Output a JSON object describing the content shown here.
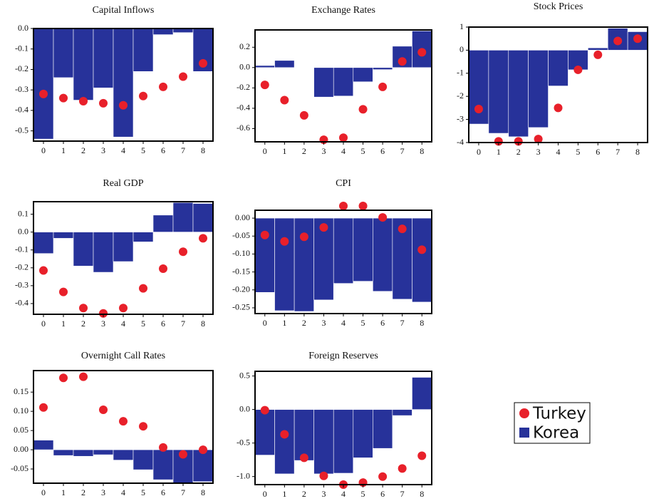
{
  "chart_data": [
    {
      "type": "combo",
      "title": "Capital Inflows",
      "categories": [
        "0",
        "1",
        "2",
        "3",
        "4",
        "5",
        "6",
        "7",
        "8"
      ],
      "ylim": [
        -0.55,
        0
      ],
      "yticks": [
        {
          "value": 0,
          "label": "0.0"
        },
        -0.1,
        -0.2,
        -0.3,
        -0.4,
        -0.5
      ],
      "series": [
        {
          "type": "bar",
          "color": "#27329a",
          "values": [
            -0.54,
            -0.24,
            -0.35,
            -0.29,
            -0.53,
            -0.21,
            -0.03,
            -0.02,
            -0.21
          ]
        },
        {
          "type": "scatter",
          "color": "#e8202a",
          "values": [
            -0.32,
            -0.34,
            -0.355,
            -0.365,
            -0.375,
            -0.33,
            -0.285,
            -0.235,
            -0.17
          ]
        }
      ]
    },
    {
      "type": "combo",
      "title": "Exchange Rates",
      "categories": [
        "0",
        "1",
        "2",
        "3",
        "4",
        "5",
        "6",
        "7",
        "8"
      ],
      "ylim": [
        -0.73,
        0.37
      ],
      "yticks": [
        0.2,
        {
          "value": 0,
          "label": "0.0"
        },
        -0.2,
        -0.4,
        -0.6
      ],
      "series": [
        {
          "type": "bar",
          "color": "#27329a",
          "values": [
            0.02,
            0.07,
            0.0,
            -0.29,
            -0.28,
            -0.14,
            -0.02,
            0.21,
            0.36
          ]
        },
        {
          "type": "scatter",
          "color": "#e8202a",
          "values": [
            -0.17,
            -0.32,
            -0.47,
            -0.71,
            -0.69,
            -0.41,
            -0.19,
            0.06,
            0.15
          ]
        }
      ]
    },
    {
      "type": "combo",
      "title": "Stock Prices",
      "categories": [
        "0",
        "1",
        "2",
        "3",
        "4",
        "5",
        "6",
        "7",
        "8"
      ],
      "ylim": [
        -4,
        1
      ],
      "yticks": [
        1,
        0,
        -1,
        -2,
        -3,
        -4
      ],
      "series": [
        {
          "type": "bar",
          "color": "#27329a",
          "values": [
            -3.2,
            -3.6,
            -3.75,
            -3.35,
            -1.55,
            -0.85,
            0.1,
            0.95,
            0.8
          ]
        },
        {
          "type": "scatter",
          "color": "#e8202a",
          "values": [
            -2.55,
            -3.95,
            -3.95,
            -3.85,
            -2.5,
            -0.85,
            -0.2,
            0.4,
            0.5
          ]
        }
      ]
    },
    {
      "type": "combo",
      "title": "Real GDP",
      "categories": [
        "0",
        "1",
        "2",
        "3",
        "4",
        "5",
        "6",
        "7",
        "8"
      ],
      "ylim": [
        -0.46,
        0.17
      ],
      "yticks": [
        0.1,
        {
          "value": 0,
          "label": "0.0"
        },
        -0.1,
        -0.2,
        -0.3,
        -0.4
      ],
      "series": [
        {
          "type": "bar",
          "color": "#27329a",
          "values": [
            -0.12,
            -0.035,
            -0.19,
            -0.225,
            -0.165,
            -0.055,
            0.095,
            0.165,
            0.16
          ]
        },
        {
          "type": "scatter",
          "color": "#e8202a",
          "values": [
            -0.215,
            -0.335,
            -0.425,
            -0.455,
            -0.425,
            -0.315,
            -0.205,
            -0.11,
            -0.035
          ]
        }
      ]
    },
    {
      "type": "combo",
      "title": "CPI",
      "categories": [
        "0",
        "1",
        "2",
        "3",
        "4",
        "5",
        "6",
        "7",
        "8"
      ],
      "ylim": [
        -0.266,
        0.022
      ],
      "yticks": [
        {
          "value": 0,
          "label": "0.00"
        },
        {
          "value": -0.05,
          "label": "-0.05"
        },
        {
          "value": -0.1,
          "label": "-0.10"
        },
        {
          "value": -0.15,
          "label": "-0.15"
        },
        {
          "value": -0.2,
          "label": "-0.20"
        },
        {
          "value": -0.25,
          "label": "-0.25"
        }
      ],
      "series": [
        {
          "type": "bar",
          "color": "#27329a",
          "values": [
            -0.207,
            -0.258,
            -0.26,
            -0.228,
            -0.182,
            -0.176,
            -0.204,
            -0.226,
            -0.234
          ]
        },
        {
          "type": "scatter",
          "color": "#e8202a",
          "values": [
            -0.047,
            -0.065,
            -0.052,
            -0.026,
            0.034,
            0.034,
            0.002,
            -0.03,
            -0.088
          ]
        }
      ]
    },
    {
      "type": "combo",
      "title": "Overnight Call Rates",
      "categories": [
        "0",
        "1",
        "2",
        "3",
        "4",
        "5",
        "6",
        "7",
        "8"
      ],
      "ylim": [
        -0.087,
        0.206
      ],
      "yticks": [
        0.15,
        {
          "value": 0.1,
          "label": "0.10"
        },
        0.05,
        {
          "value": 0,
          "label": "0.00"
        },
        -0.05
      ],
      "series": [
        {
          "type": "bar",
          "color": "#27329a",
          "values": [
            0.025,
            -0.015,
            -0.017,
            -0.013,
            -0.027,
            -0.052,
            -0.078,
            -0.088,
            -0.083
          ]
        },
        {
          "type": "scatter",
          "color": "#e8202a",
          "values": [
            0.11,
            0.187,
            0.19,
            0.104,
            0.074,
            0.061,
            0.006,
            -0.012,
            0.0
          ]
        }
      ]
    },
    {
      "type": "combo",
      "title": "Foreign Reserves",
      "categories": [
        "0",
        "1",
        "2",
        "3",
        "4",
        "5",
        "6",
        "7",
        "8"
      ],
      "ylim": [
        -1.12,
        0.57
      ],
      "yticks": [
        0.5,
        {
          "value": 0,
          "label": "0.0"
        },
        -0.5,
        {
          "value": -1,
          "label": "-1.0"
        }
      ],
      "series": [
        {
          "type": "bar",
          "color": "#27329a",
          "values": [
            -0.68,
            -0.96,
            -0.76,
            -0.96,
            -0.95,
            -0.72,
            -0.58,
            -0.09,
            0.48
          ]
        },
        {
          "type": "scatter",
          "color": "#e8202a",
          "values": [
            -0.01,
            -0.37,
            -0.72,
            -0.99,
            -1.12,
            -1.09,
            -1.0,
            -0.88,
            -0.69
          ]
        }
      ]
    }
  ],
  "legend": {
    "position": "right",
    "entries": [
      {
        "name": "Turkey",
        "color": "#e8202a",
        "marker": "circle"
      },
      {
        "name": "Korea",
        "color": "#27329a",
        "marker": "square"
      }
    ]
  }
}
